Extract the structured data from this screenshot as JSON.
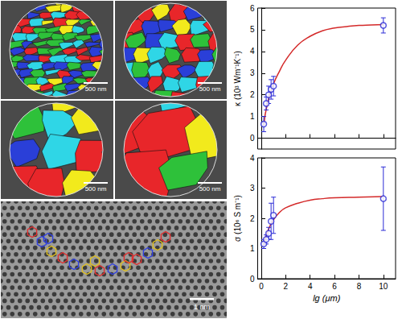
{
  "chart_data": [
    {
      "type": "scatter",
      "y_label": "κ (10³ Wm⁻¹K⁻¹)",
      "grid": false,
      "tick_labels": "y",
      "xlim": [
        -0.3,
        11
      ],
      "xticks": [
        0,
        2,
        4,
        6,
        8,
        10
      ],
      "ylim": [
        -0.5,
        6
      ],
      "yticks": [
        0,
        1,
        2,
        3,
        4,
        5,
        6
      ],
      "series": [
        {
          "type": "scatter",
          "color": "#2b2bd6",
          "marker": "open_circle",
          "x": [
            0.2,
            0.4,
            0.6,
            0.8,
            1.0,
            10
          ],
          "values": [
            0.65,
            1.6,
            2.0,
            2.25,
            2.4,
            5.2
          ],
          "errors": [
            0.35,
            0.3,
            0.4,
            0.45,
            0.45,
            0.35
          ]
        },
        {
          "type": "line",
          "color": "#d42a2a",
          "line_style": "solid",
          "x": [
            0.2,
            0.5,
            1,
            1.5,
            2,
            3,
            4,
            5,
            6,
            7,
            8,
            9,
            10
          ],
          "values": [
            0.6,
            1.6,
            2.5,
            3.1,
            3.6,
            4.3,
            4.7,
            4.95,
            5.08,
            5.15,
            5.2,
            5.22,
            5.24
          ]
        }
      ]
    },
    {
      "type": "scatter",
      "y_label": "σ (10⁶ S m⁻¹)",
      "x_label": "lg (μm)",
      "grid": false,
      "xlim": [
        -0.3,
        11
      ],
      "xticks": [
        0,
        2,
        4,
        6,
        8,
        10
      ],
      "ylim": [
        0,
        4
      ],
      "yticks": [
        0,
        1,
        2,
        3,
        4
      ],
      "series": [
        {
          "type": "scatter",
          "color": "#2b2bd6",
          "marker": "open_circle",
          "x": [
            0.2,
            0.4,
            0.6,
            0.8,
            1.0,
            10
          ],
          "values": [
            1.15,
            1.3,
            1.5,
            1.9,
            2.1,
            2.65
          ],
          "errors": [
            0.15,
            0.15,
            0.2,
            0.6,
            0.6,
            1.05
          ]
        },
        {
          "type": "line",
          "color": "#d42a2a",
          "line_style": "solid",
          "x": [
            0.2,
            0.5,
            1,
            1.5,
            2,
            3,
            4,
            5,
            6,
            8,
            10
          ],
          "values": [
            1.1,
            1.55,
            1.95,
            2.2,
            2.35,
            2.5,
            2.6,
            2.65,
            2.68,
            2.7,
            2.72
          ]
        }
      ]
    }
  ],
  "panels": [
    {
      "scale_bar": "500 nm"
    },
    {
      "scale_bar": "500 nm"
    },
    {
      "scale_bar": "500 nm"
    },
    {
      "scale_bar": "500 nm"
    },
    {
      "scale_bar": "1 nm"
    }
  ]
}
